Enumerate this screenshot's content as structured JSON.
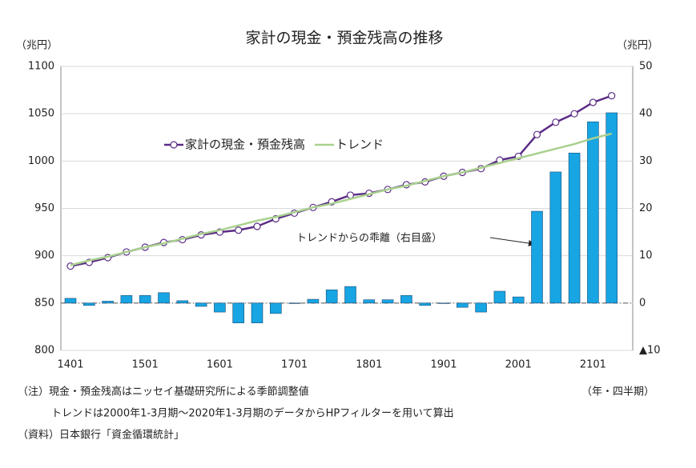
{
  "chart_data": {
    "type": "combo",
    "title": "家計の現金・預金残高の推移",
    "y_label": "（兆円）",
    "y2_label": "（兆円）",
    "x_label": "（年・四半期）",
    "annotation": "トレンドからの乖離（右目盛）",
    "notes": [
      "（注）現金・預金残高はニッセイ基礎研究所による季節調整値",
      "トレンドは2000年1-3月期～2020年1-3月期のデータからHPフィルターを用いて算出",
      "（資料）日本銀行「資金循環統計」"
    ],
    "categories": [
      "1401",
      null,
      null,
      null,
      "1501",
      null,
      null,
      null,
      "1601",
      null,
      null,
      null,
      "1701",
      null,
      null,
      null,
      "1801",
      null,
      null,
      null,
      "1901",
      null,
      null,
      null,
      "2001",
      null,
      null,
      null,
      "2101",
      null
    ],
    "ylim": [
      800,
      1100
    ],
    "yticks": [
      800,
      850,
      900,
      950,
      1000,
      1050,
      1100
    ],
    "y2lim": [
      -10,
      50
    ],
    "y2ticks": [
      {
        "value": -10,
        "label": "▲10"
      },
      0,
      10,
      20,
      30,
      40,
      50
    ],
    "grid": true,
    "series": [
      {
        "name": "家計の現金・預金残高",
        "type": "line",
        "color": "#5b2c86",
        "markers": true,
        "values": [
          889,
          893,
          898,
          904,
          909,
          914,
          917,
          922,
          925,
          927,
          931,
          939,
          945,
          951,
          957,
          964,
          966,
          970,
          975,
          978,
          984,
          988,
          992,
          1001,
          1005,
          1028,
          1041,
          1050,
          1062,
          1069
        ]
      },
      {
        "name": "トレンド",
        "type": "line",
        "color": "#a9d18e",
        "markers": false,
        "values": [
          890,
          895,
          899,
          904,
          909,
          913,
          918,
          923,
          927,
          932,
          937,
          941,
          946,
          951,
          955,
          960,
          965,
          970,
          974,
          979,
          984,
          988,
          993,
          998,
          1003,
          1008,
          1013,
          1018,
          1024,
          1029
        ]
      },
      {
        "name": "トレンドからの乖離",
        "type": "bar",
        "axis": "y2",
        "color": "#17a5e3",
        "values": [
          1.0,
          -0.5,
          0.4,
          1.6,
          1.6,
          2.2,
          0.5,
          -0.7,
          -1.9,
          -4.2,
          -4.2,
          -2.2,
          -0.1,
          0.8,
          2.8,
          3.5,
          0.7,
          0.7,
          1.6,
          -0.5,
          -0.1,
          -0.9,
          -1.9,
          2.5,
          1.3,
          19.4,
          27.7,
          31.7,
          38.3,
          40.2
        ]
      }
    ]
  }
}
